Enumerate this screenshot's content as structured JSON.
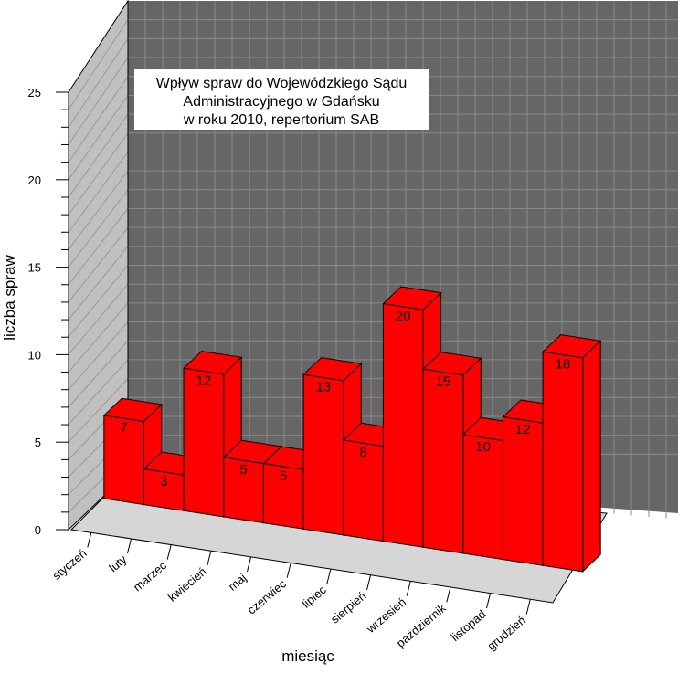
{
  "chart_data": {
    "type": "bar",
    "title": [
      "Wpływ spraw do Wojewódzkiego Sądu",
      "Administracyjnego w Gdańsku",
      "w roku 2010, repertorium SAB"
    ],
    "xlabel": "miesiąc",
    "ylabel": "liczba spraw",
    "ylim": [
      0,
      25
    ],
    "yticks": [
      "0",
      "5",
      "10",
      "15",
      "20",
      "25"
    ],
    "categories": [
      "styczeń",
      "luty",
      "marzec",
      "kwiecień",
      "maj",
      "czerwiec",
      "lipiec",
      "sierpień",
      "wrzesień",
      "październik",
      "listopad",
      "grudzień"
    ],
    "values": [
      7,
      3,
      12,
      5,
      5,
      13,
      8,
      20,
      15,
      10,
      12,
      18
    ],
    "grid": true,
    "colors": {
      "bar": "#ff0000",
      "back_wall": "#666666",
      "side_wall": "#c0c0c0",
      "floor": "#d6d6d6",
      "grid": "#8a8a8a"
    }
  }
}
